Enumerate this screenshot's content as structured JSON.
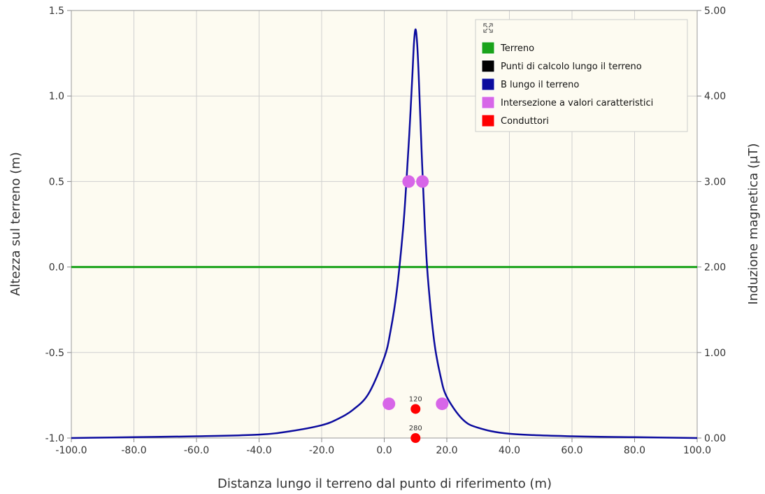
{
  "colors": {
    "plot_background": "#fdfbf1",
    "grid": "#cfcfcf",
    "terreno": "#1aa31a",
    "punti": "#000000",
    "b_curve": "#0b0b9e",
    "intersezione": "#d766e8",
    "conduttori": "#ff0000"
  },
  "legend": {
    "expand_icon": "expand-icon",
    "items": [
      {
        "label": "Terreno",
        "color_key": "terreno"
      },
      {
        "label": "Punti di calcolo lungo il terreno",
        "color_key": "punti"
      },
      {
        "label": "B lungo il terreno",
        "color_key": "b_curve"
      },
      {
        "label": "Intersezione a valori caratteristici",
        "color_key": "intersezione"
      },
      {
        "label": "Conduttori",
        "color_key": "conduttori"
      }
    ]
  },
  "chart_data": {
    "type": "line",
    "xlabel": "Distanza lungo il terreno dal punto di riferimento (m)",
    "ylabel_left": "Altezza sul terreno (m)",
    "ylabel_right": "Induzione magnetica (µT)",
    "xlim": [
      -100,
      100
    ],
    "ylim_left": [
      -1.0,
      1.5
    ],
    "ylim_right": [
      0,
      5
    ],
    "x_ticks": [
      "-100.0",
      "-80.0",
      "-60.0",
      "-40.0",
      "-20.0",
      "0.0",
      "20.0",
      "40.0",
      "60.0",
      "80.0",
      "100.0"
    ],
    "y_left_ticks": [
      "-1.0",
      "-0.5",
      "0.0",
      "0.5",
      "1.0",
      "1.5"
    ],
    "y_right_ticks": [
      "0.00",
      "1.00",
      "2.00",
      "3.00",
      "4.00",
      "5.00"
    ],
    "grid": true,
    "legend_position": "top-right",
    "series": [
      {
        "name": "Terreno",
        "axis": "left",
        "x": [
          -100,
          100
        ],
        "y": [
          0.0,
          0.0
        ]
      },
      {
        "name": "B lungo il terreno",
        "axis": "right",
        "x": [
          -100,
          -80,
          -60,
          -40,
          -30,
          -20,
          -15,
          -10,
          -5,
          0,
          2,
          4,
          6,
          7,
          8,
          9,
          9.5,
          10,
          10.5,
          11,
          12,
          13,
          14,
          16,
          18,
          20,
          25,
          30,
          40,
          60,
          80,
          100
        ],
        "y": [
          0.0,
          0.01,
          0.02,
          0.04,
          0.08,
          0.15,
          0.22,
          0.33,
          0.52,
          0.94,
          1.25,
          1.72,
          2.44,
          2.95,
          3.55,
          4.25,
          4.62,
          4.78,
          4.62,
          4.25,
          3.3,
          2.45,
          1.85,
          1.12,
          0.72,
          0.48,
          0.22,
          0.12,
          0.05,
          0.02,
          0.01,
          0.0
        ]
      },
      {
        "name": "Intersezione a valori caratteristici",
        "axis": "left",
        "x": [
          7.8,
          12.2,
          1.5,
          18.5
        ],
        "y": [
          0.5,
          0.5,
          -0.8,
          -0.8
        ]
      },
      {
        "name": "Conduttori",
        "axis": "left",
        "x": [
          10,
          10
        ],
        "y": [
          -0.83,
          -1.0
        ],
        "labels": [
          "120",
          "280"
        ]
      }
    ]
  }
}
